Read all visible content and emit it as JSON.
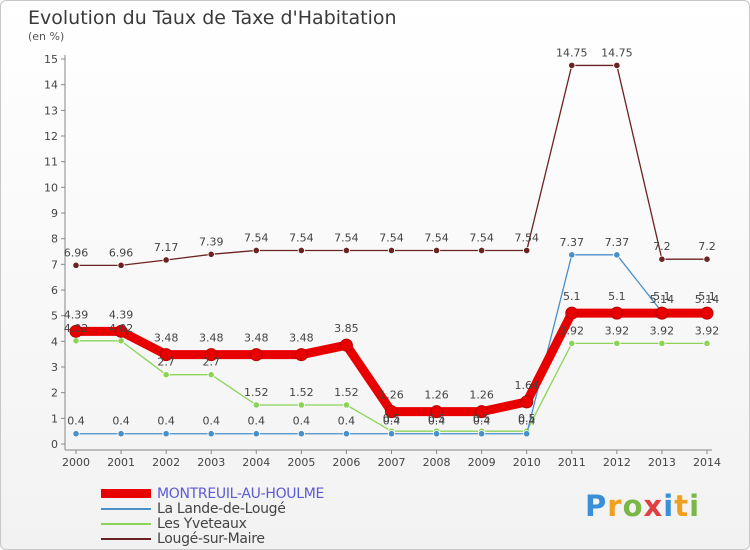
{
  "header": {
    "title": "Evolution du Taux de Taxe d'Habitation",
    "unit": "(en %)"
  },
  "logo": {
    "text": "Proxiti",
    "colors": [
      "#3a8fd8",
      "#f0a020",
      "#7ab648",
      "#e04040",
      "#3a8fd8",
      "#f0a020",
      "#7ab648"
    ]
  },
  "chart_data": {
    "type": "line",
    "title": "Evolution du Taux de Taxe d'Habitation",
    "ylabel": "(en %)",
    "xlabel": "",
    "x": [
      "2000",
      "2001",
      "2002",
      "2003",
      "2004",
      "2005",
      "2006",
      "2007",
      "2008",
      "2009",
      "2010",
      "2011",
      "2012",
      "2013",
      "2014"
    ],
    "ylim": [
      0,
      15
    ],
    "yticks": [
      0,
      1,
      2,
      3,
      4,
      5,
      6,
      7,
      8,
      9,
      10,
      11,
      12,
      13,
      14,
      15
    ],
    "grid": false,
    "legend_placement": "bottom-left",
    "series": [
      {
        "name": "MONTREUIL-AU-HOULME",
        "color": "#e80000",
        "values": [
          4.39,
          4.39,
          3.48,
          3.48,
          3.48,
          3.48,
          3.85,
          1.26,
          1.26,
          1.26,
          1.64,
          5.1,
          5.1,
          5.1,
          5.1
        ],
        "labels": [
          "4.39",
          "4.39",
          "3.48",
          "3.48",
          "3.48",
          "3.48",
          "3.85",
          "1.26",
          "1.26",
          "1.26",
          "1.64",
          "5.1",
          "5.1",
          "5.1",
          "5.1"
        ]
      },
      {
        "name": "La Lande-de-Lougé",
        "color": "#4a90c8",
        "values": [
          0.4,
          0.4,
          0.4,
          0.4,
          0.4,
          0.4,
          0.4,
          0.4,
          0.4,
          0.4,
          0.4,
          7.37,
          7.37,
          5.14,
          5.14
        ],
        "labels": [
          "0.4",
          "0.4",
          "0.4",
          "0.4",
          "0.4",
          "0.4",
          "0.4",
          "0.4",
          "0.4",
          "0.4",
          "0.4",
          "7.37",
          "7.37",
          "5.14",
          "5.14"
        ]
      },
      {
        "name": "Les Yveteaux",
        "color": "#8bd458",
        "values": [
          4.02,
          4.02,
          2.7,
          2.7,
          1.52,
          1.52,
          1.52,
          0.5,
          0.5,
          0.5,
          0.5,
          3.92,
          3.92,
          3.92,
          3.92
        ],
        "labels": [
          "4.02",
          "4.02",
          "2.7",
          "2.7",
          "1.52",
          "1.52",
          "1.52",
          "0.5",
          "0.5",
          "0.5",
          "0.5",
          "3.92",
          "3.92",
          "3.92",
          "3.92"
        ]
      },
      {
        "name": "Lougé-sur-Maire",
        "color": "#6b2222",
        "values": [
          6.96,
          6.96,
          7.17,
          7.39,
          7.54,
          7.54,
          7.54,
          7.54,
          7.54,
          7.54,
          7.54,
          14.75,
          14.75,
          7.2,
          7.2
        ],
        "labels": [
          "6.96",
          "6.96",
          "7.17",
          "7.39",
          "7.54",
          "7.54",
          "7.54",
          "7.54",
          "7.54",
          "7.54",
          "7.54",
          "14.75",
          "14.75",
          "7.2",
          "7.2"
        ]
      }
    ]
  }
}
